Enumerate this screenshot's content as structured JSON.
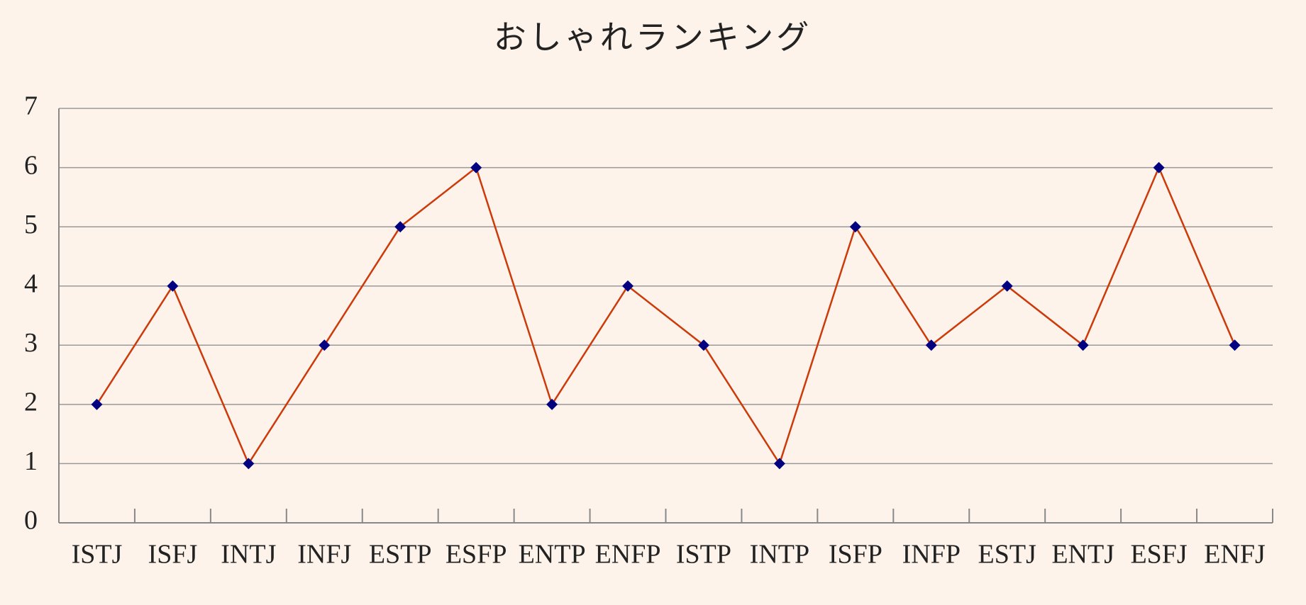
{
  "chart_data": {
    "type": "line",
    "title": "おしゃれランキング",
    "categories": [
      "ISTJ",
      "ISFJ",
      "INTJ",
      "INFJ",
      "ESTP",
      "ESFP",
      "ENTP",
      "ENFP",
      "ISTP",
      "INTP",
      "ISFP",
      "INFP",
      "ESTJ",
      "ENTJ",
      "ESFJ",
      "ENFJ"
    ],
    "series": [
      {
        "line_color": "#cc3a0a",
        "color": "#000080",
        "values": [
          2,
          4,
          1,
          3,
          5,
          6,
          2,
          4,
          3,
          1,
          5,
          3,
          4,
          3,
          6,
          3
        ]
      }
    ],
    "ylim": [
      0,
      7
    ],
    "yticks": [
      0,
      1,
      2,
      3,
      4,
      5,
      6,
      7
    ],
    "grid": true
  }
}
